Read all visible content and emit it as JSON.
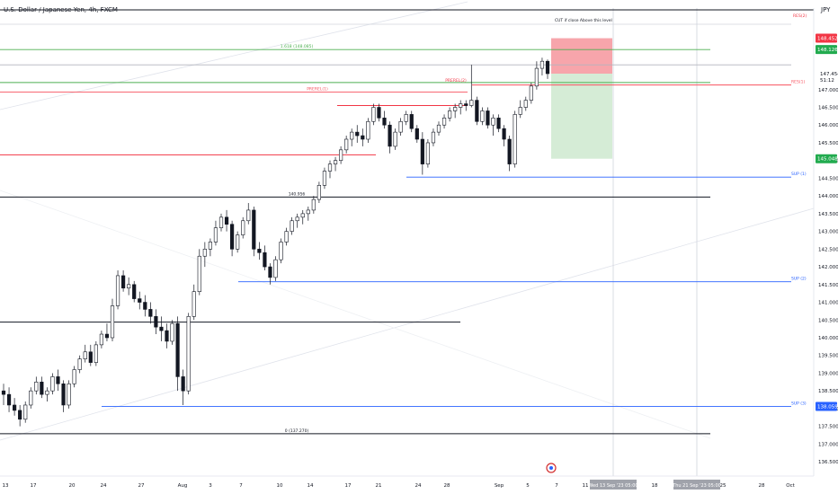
{
  "header": {
    "symbol_title": "U.S. Dollar / Japanese Yen, 4h, FXCM",
    "currency": "JPY"
  },
  "chart_data": {
    "type": "candlestick",
    "y_axis": {
      "ticks": [
        "136.500",
        "137.000",
        "137.500",
        "138.000",
        "138.500",
        "139.000",
        "139.500",
        "140.000",
        "140.500",
        "141.000",
        "141.500",
        "142.000",
        "142.500",
        "143.000",
        "143.500",
        "144.000",
        "144.500",
        "145.000",
        "145.500",
        "146.000",
        "146.500",
        "147.000"
      ],
      "range": [
        136.3,
        149.3
      ],
      "price_label": "147.454",
      "countdown": "51:12"
    },
    "x_axis": {
      "ticks": [
        "13",
        "17",
        "20",
        "24",
        "27",
        "Aug",
        "3",
        "7",
        "10",
        "14",
        "17",
        "21",
        "24",
        "28",
        "Sep",
        "5",
        "7",
        "11",
        "14",
        "18",
        "21",
        "25",
        "28",
        "Oct"
      ],
      "highlight_labels": [
        "Wed 13 Sep '23  05:00",
        "Thu 21 Sep '23  05:00"
      ]
    },
    "price_badges": [
      {
        "value": "148.452",
        "color": "#f23645"
      },
      {
        "value": "148.126",
        "color": "#22ab4f"
      },
      {
        "value": "145.048",
        "color": "#22ab4f"
      },
      {
        "value": "138.059",
        "color": "#2962ff"
      }
    ],
    "levels": [
      {
        "price": 149.25,
        "color": "#131722",
        "text": ""
      },
      {
        "price": 148.13,
        "color": "#4caf50",
        "text": "1.618 (148.085)"
      },
      {
        "price": 147.7,
        "color": "#b2b5be",
        "text": ""
      },
      {
        "price": 147.2,
        "color": "#4caf50",
        "text": ""
      },
      {
        "price": 147.13,
        "color": "#f7525f",
        "text": "RES(1)"
      },
      {
        "price": 146.93,
        "color": "#f7525f",
        "text": "PREREL(1)"
      },
      {
        "price": 145.16,
        "color": "#f23645",
        "text": ""
      },
      {
        "price": 144.53,
        "color": "#2962ff",
        "text": "SUP (1)"
      },
      {
        "price": 143.97,
        "color": "#131722",
        "text": "140.956"
      },
      {
        "price": 141.58,
        "color": "#2962ff",
        "text": "SUP (2)"
      },
      {
        "price": 140.44,
        "color": "#131722",
        "text": ""
      },
      {
        "price": 138.06,
        "color": "#2962ff",
        "text": "SUP (3)"
      },
      {
        "price": 137.29,
        "color": "#131722",
        "text": "0 (137.270)"
      }
    ],
    "labels": {
      "res2": "RES(2)",
      "prerel2": "PREREL(2)",
      "cut": "CUT if close Above this level"
    },
    "trade_box": {
      "entry": 147.45,
      "target": 145.05,
      "stop": 148.45
    },
    "candles": [
      [
        138.5,
        138.7,
        138.1,
        138.4
      ],
      [
        138.4,
        138.6,
        137.9,
        138.1
      ],
      [
        138.1,
        138.3,
        137.8,
        137.95
      ],
      [
        137.95,
        138.1,
        137.5,
        137.7
      ],
      [
        137.7,
        138.2,
        137.6,
        138.1
      ],
      [
        138.1,
        138.6,
        138.0,
        138.5
      ],
      [
        138.5,
        138.9,
        138.4,
        138.75
      ],
      [
        138.75,
        138.9,
        138.3,
        138.4
      ],
      [
        138.4,
        138.6,
        138.2,
        138.5
      ],
      [
        138.5,
        139.0,
        138.4,
        138.9
      ],
      [
        138.9,
        139.1,
        138.5,
        138.7
      ],
      [
        138.7,
        138.8,
        137.9,
        138.1
      ],
      [
        138.1,
        138.8,
        138.0,
        138.7
      ],
      [
        138.7,
        139.2,
        138.6,
        139.1
      ],
      [
        139.1,
        139.5,
        139.0,
        139.4
      ],
      [
        139.4,
        139.8,
        139.3,
        139.6
      ],
      [
        139.6,
        139.8,
        139.2,
        139.3
      ],
      [
        139.3,
        139.9,
        139.2,
        139.8
      ],
      [
        139.8,
        140.2,
        139.7,
        140.1
      ],
      [
        140.1,
        140.4,
        139.9,
        140.0
      ],
      [
        140.0,
        141.1,
        139.9,
        140.9
      ],
      [
        140.9,
        141.9,
        140.8,
        141.75
      ],
      [
        141.75,
        141.9,
        141.3,
        141.4
      ],
      [
        141.4,
        141.7,
        141.2,
        141.5
      ],
      [
        141.5,
        141.6,
        141.0,
        141.1
      ],
      [
        141.1,
        141.3,
        140.8,
        141.0
      ],
      [
        141.0,
        141.2,
        140.6,
        140.8
      ],
      [
        140.8,
        141.0,
        140.4,
        140.6
      ],
      [
        140.6,
        140.8,
        140.1,
        140.3
      ],
      [
        140.3,
        140.6,
        139.9,
        140.2
      ],
      [
        140.2,
        140.4,
        139.7,
        139.9
      ],
      [
        139.9,
        140.5,
        139.8,
        140.4
      ],
      [
        140.4,
        140.6,
        138.5,
        138.9
      ],
      [
        138.9,
        139.1,
        138.1,
        138.5
      ],
      [
        138.5,
        140.7,
        138.4,
        140.6
      ],
      [
        140.6,
        141.5,
        140.5,
        141.3
      ],
      [
        141.3,
        142.5,
        141.2,
        142.3
      ],
      [
        142.3,
        142.7,
        142.0,
        142.5
      ],
      [
        142.5,
        142.8,
        142.3,
        142.7
      ],
      [
        142.7,
        143.3,
        142.6,
        143.1
      ],
      [
        143.1,
        143.5,
        143.0,
        143.4
      ],
      [
        143.4,
        143.6,
        143.0,
        143.2
      ],
      [
        143.2,
        143.3,
        142.3,
        142.5
      ],
      [
        142.5,
        143.0,
        142.4,
        142.9
      ],
      [
        142.9,
        143.4,
        142.8,
        143.3
      ],
      [
        143.3,
        143.8,
        143.2,
        143.6
      ],
      [
        143.6,
        143.7,
        142.3,
        142.5
      ],
      [
        142.5,
        142.7,
        142.2,
        142.4
      ],
      [
        142.4,
        142.6,
        141.9,
        142.0
      ],
      [
        142.0,
        142.1,
        141.5,
        141.7
      ],
      [
        141.7,
        142.3,
        141.6,
        142.2
      ],
      [
        142.2,
        142.8,
        142.1,
        142.7
      ],
      [
        142.7,
        143.1,
        142.6,
        143.0
      ],
      [
        143.0,
        143.4,
        142.9,
        143.3
      ],
      [
        143.3,
        143.5,
        143.1,
        143.4
      ],
      [
        143.4,
        143.6,
        143.2,
        143.5
      ],
      [
        143.5,
        143.7,
        143.3,
        143.6
      ],
      [
        143.6,
        144.0,
        143.5,
        143.9
      ],
      [
        143.9,
        144.4,
        143.8,
        144.3
      ],
      [
        144.3,
        144.8,
        144.2,
        144.7
      ],
      [
        144.7,
        145.0,
        144.5,
        144.9
      ],
      [
        144.9,
        145.1,
        144.7,
        145.0
      ],
      [
        145.0,
        145.4,
        144.9,
        145.3
      ],
      [
        145.3,
        145.7,
        145.2,
        145.6
      ],
      [
        145.6,
        145.9,
        145.4,
        145.8
      ],
      [
        145.8,
        146.0,
        145.5,
        145.7
      ],
      [
        145.7,
        145.9,
        145.4,
        145.6
      ],
      [
        145.6,
        146.2,
        145.5,
        146.1
      ],
      [
        146.1,
        146.6,
        146.0,
        146.5
      ],
      [
        146.5,
        146.6,
        146.1,
        146.2
      ],
      [
        146.2,
        146.4,
        145.9,
        146.0
      ],
      [
        146.0,
        146.1,
        145.2,
        145.4
      ],
      [
        145.4,
        145.9,
        145.3,
        145.8
      ],
      [
        145.8,
        146.2,
        145.7,
        146.1
      ],
      [
        146.1,
        146.4,
        146.0,
        146.3
      ],
      [
        146.3,
        146.4,
        145.8,
        145.9
      ],
      [
        145.9,
        146.0,
        145.5,
        145.6
      ],
      [
        145.6,
        145.8,
        144.6,
        144.9
      ],
      [
        144.9,
        145.6,
        144.8,
        145.5
      ],
      [
        145.5,
        145.9,
        145.4,
        145.8
      ],
      [
        145.8,
        146.1,
        145.7,
        146.0
      ],
      [
        146.0,
        146.3,
        145.9,
        146.2
      ],
      [
        146.2,
        146.5,
        146.1,
        146.4
      ],
      [
        146.4,
        146.6,
        146.2,
        146.5
      ],
      [
        146.5,
        146.7,
        146.3,
        146.6
      ],
      [
        146.6,
        146.7,
        146.4,
        146.55
      ],
      [
        146.55,
        147.7,
        146.5,
        146.7
      ],
      [
        146.7,
        146.8,
        146.0,
        146.1
      ],
      [
        146.1,
        146.5,
        146.0,
        146.4
      ],
      [
        146.4,
        146.5,
        145.9,
        146.0
      ],
      [
        146.0,
        146.3,
        145.7,
        146.2
      ],
      [
        146.2,
        146.3,
        145.8,
        145.9
      ],
      [
        145.9,
        146.0,
        145.4,
        145.6
      ],
      [
        145.6,
        145.7,
        144.7,
        144.9
      ],
      [
        144.9,
        146.4,
        144.8,
        146.3
      ],
      [
        146.3,
        146.7,
        146.2,
        146.5
      ],
      [
        146.5,
        146.8,
        146.4,
        146.7
      ],
      [
        146.7,
        147.2,
        146.6,
        147.1
      ],
      [
        147.1,
        147.8,
        147.0,
        147.6
      ],
      [
        147.6,
        147.9,
        147.4,
        147.8
      ],
      [
        147.8,
        147.85,
        147.3,
        147.45
      ]
    ]
  }
}
